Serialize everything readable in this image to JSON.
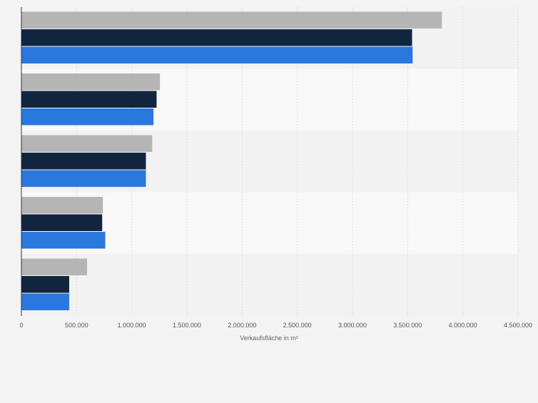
{
  "chart_data": {
    "type": "bar",
    "orientation": "horizontal",
    "categories": [
      "",
      "",
      "",
      "",
      ""
    ],
    "series": [
      {
        "values": [
          3810000,
          1255000,
          1185000,
          738000,
          595000
        ]
      },
      {
        "values": [
          3540000,
          1225000,
          1128000,
          732000,
          433000
        ]
      },
      {
        "values": [
          3545000,
          1197000,
          1128000,
          760000,
          433000
        ]
      }
    ],
    "colors": [
      "#b5b5b5",
      "#12253f",
      "#2a78de"
    ],
    "xlabel": "Verkaufsfläche in m²",
    "xlim": [
      0,
      4500000
    ],
    "ticks": [
      0,
      500000,
      1000000,
      1500000,
      2000000,
      2500000,
      3000000,
      3500000,
      4000000,
      4500000
    ],
    "tick_labels": [
      "0",
      "500.000",
      "1.000.000",
      "1.500.000",
      "2.000.000",
      "2.500.000",
      "3.000.000",
      "3.500.000",
      "4.000.000",
      "4.500.000"
    ],
    "grid": true,
    "legend": "none",
    "band_colors": [
      "#f2f2f2",
      "#f8f8f8"
    ]
  }
}
